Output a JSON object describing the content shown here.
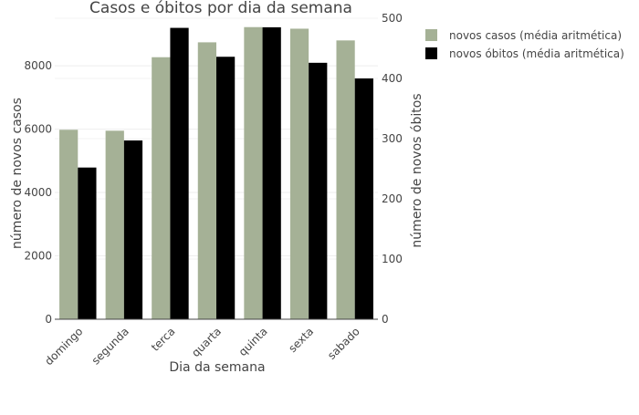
{
  "chart_data": {
    "type": "bar",
    "title": "Casos e óbitos por dia da semana",
    "xlabel": "Dia da semana",
    "ylabel_left": "número de novos casos",
    "ylabel_right": "número de novos óbitos",
    "categories": [
      "domingo",
      "segunda",
      "terca",
      "quarta",
      "quinta",
      "sexta",
      "sabado"
    ],
    "y_left_range": [
      0,
      9500
    ],
    "y_left_ticks": [
      0,
      2000,
      4000,
      6000,
      8000
    ],
    "y_right_range": [
      0,
      500
    ],
    "y_right_ticks": [
      0,
      100,
      200,
      300,
      400,
      500
    ],
    "grid": true,
    "legend_position": "top-right",
    "series": [
      {
        "name": "novos casos (média aritmética)",
        "axis": "left",
        "color": "#a5b196",
        "values": [
          5980,
          5950,
          8270,
          8740,
          9220,
          9170,
          8800
        ]
      },
      {
        "name": "novos óbitos (média aritmética)",
        "axis": "right",
        "color": "#000000",
        "values": [
          252,
          297,
          484,
          436,
          485,
          426,
          400
        ]
      }
    ]
  }
}
